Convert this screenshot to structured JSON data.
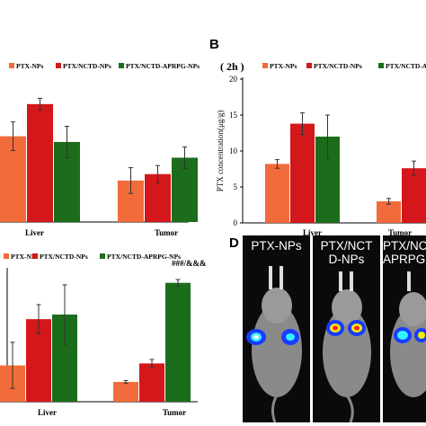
{
  "colors": {
    "ptx_nps": "#f26b3a",
    "ptx_nctd_nps": "#d4171a",
    "ptx_nctd_aprpg_nps": "#1b6d1b",
    "photo_bg": "#0a0a0a"
  },
  "panel_labels": {
    "b": "B",
    "d": "D"
  },
  "chart_data": [
    {
      "id": "A",
      "type": "bar",
      "title": "",
      "categories": [
        "Liver",
        "Tumor"
      ],
      "series": [
        {
          "name": "PTX-NPs",
          "values": [
            12.0,
            5.8
          ],
          "errors": [
            2.0,
            1.8
          ]
        },
        {
          "name": "PTX/NCTD-NPs",
          "values": [
            16.5,
            6.7
          ],
          "errors": [
            0.8,
            1.2
          ]
        },
        {
          "name": "PTX/NCTD-APRPG-NPs",
          "values": [
            11.2,
            9.0
          ],
          "errors": [
            2.2,
            1.5
          ]
        }
      ],
      "ylim": [
        0,
        20
      ],
      "legend": "top"
    },
    {
      "id": "B",
      "type": "bar",
      "title": "( 2h )",
      "ylabel": "PTX concentration(μg/g)",
      "yticks": [
        "0",
        "5",
        "10",
        "15",
        "20"
      ],
      "categories": [
        "Liver",
        "Tumor"
      ],
      "series": [
        {
          "name": "PTX-NPs",
          "values": [
            8.2,
            3.0
          ],
          "errors": [
            0.6,
            0.4
          ]
        },
        {
          "name": "PTX/NCTD-NPs",
          "values": [
            13.8,
            7.6
          ],
          "errors": [
            1.5,
            1.0
          ]
        },
        {
          "name": "PTX/NCTD-APRPG-NPs",
          "values": [
            12.0,
            0.0
          ],
          "errors": [
            3.0,
            0.0
          ]
        }
      ],
      "ylim": [
        0,
        20
      ],
      "legend": "top"
    },
    {
      "id": "C",
      "type": "bar",
      "title": "",
      "categories": [
        "Liver",
        "Tumor"
      ],
      "series": [
        {
          "name": "PTX-NPs",
          "values": [
            5.5,
            3.0
          ],
          "errors": [
            3.5,
            0.2
          ]
        },
        {
          "name": "PTX/NCTD-NPs",
          "values": [
            12.5,
            5.8
          ],
          "errors": [
            2.2,
            0.6
          ]
        },
        {
          "name": "PTX/NCTD-APRPG-NPs",
          "values": [
            13.2,
            18.0
          ],
          "errors": [
            4.5,
            0.5
          ]
        }
      ],
      "annotations": [
        {
          "text": "###/&&&"
        }
      ],
      "ylim": [
        0,
        20
      ],
      "legend": "top"
    }
  ],
  "photos": {
    "labels": [
      "PTX-NPs",
      "PTX/NCT\nD-NPs",
      "PTX/NC\nAPRPG"
    ]
  }
}
